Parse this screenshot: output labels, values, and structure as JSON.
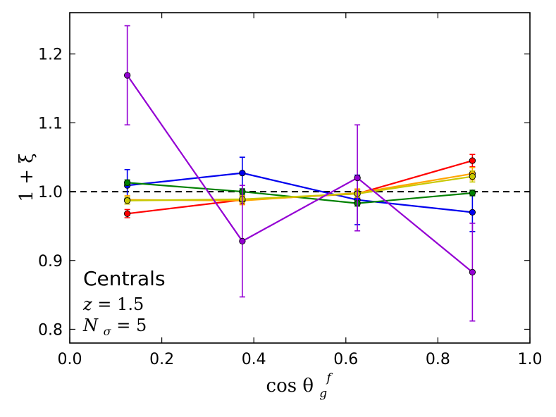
{
  "chart_data": {
    "type": "line",
    "title": "",
    "xlabel": "cos θ",
    "xlabel_sub": "g",
    "xlabel_sup": "f",
    "ylabel": "1 + ξ",
    "xlim": [
      0.0,
      1.0
    ],
    "ylim": [
      0.78,
      1.26
    ],
    "xticks": [
      "0.0",
      "0.2",
      "0.4",
      "0.6",
      "0.8",
      "1.0"
    ],
    "yticks": [
      "0.8",
      "0.9",
      "1.0",
      "1.1",
      "1.2"
    ],
    "xtick_values": [
      0.0,
      0.2,
      0.4,
      0.6,
      0.8,
      1.0
    ],
    "ytick_values": [
      0.8,
      0.9,
      1.0,
      1.1,
      1.2
    ],
    "reference_line": 1.0,
    "x": [
      0.125,
      0.375,
      0.625,
      0.875
    ],
    "series": [
      {
        "name": "red",
        "color": "#ff0000",
        "values": [
          0.968,
          0.988,
          0.997,
          1.045
        ],
        "errors": [
          0.006,
          0.006,
          0.006,
          0.009
        ]
      },
      {
        "name": "blue",
        "color": "#0000ee",
        "values": [
          1.009,
          1.027,
          0.988,
          0.97
        ],
        "errors": [
          0.023,
          0.023,
          0.036,
          0.028
        ]
      },
      {
        "name": "green",
        "color": "#008000",
        "values": [
          1.013,
          1.0,
          0.983,
          0.998
        ],
        "errors": [
          0.004,
          0.004,
          0.004,
          0.004
        ]
      },
      {
        "name": "orange",
        "color": "#ffa500",
        "values": [
          0.988,
          0.987,
          0.998,
          1.026
        ],
        "errors": [
          0.006,
          0.006,
          0.006,
          0.009
        ]
      },
      {
        "name": "olive",
        "color": "#c8c800",
        "values": [
          0.987,
          0.989,
          0.997,
          1.022
        ],
        "errors": [
          0.005,
          0.005,
          0.005,
          0.008
        ]
      },
      {
        "name": "purple",
        "color": "#9400d3",
        "values": [
          1.169,
          0.928,
          1.02,
          0.883
        ],
        "errors": [
          0.072,
          0.081,
          0.077,
          0.071
        ]
      }
    ],
    "annotations": {
      "sample": "Centrals",
      "redshift_var": "z",
      "redshift_value": "1.5",
      "nsigma_var": "N",
      "nsigma_sub": "σ",
      "nsigma_value": "5"
    }
  }
}
